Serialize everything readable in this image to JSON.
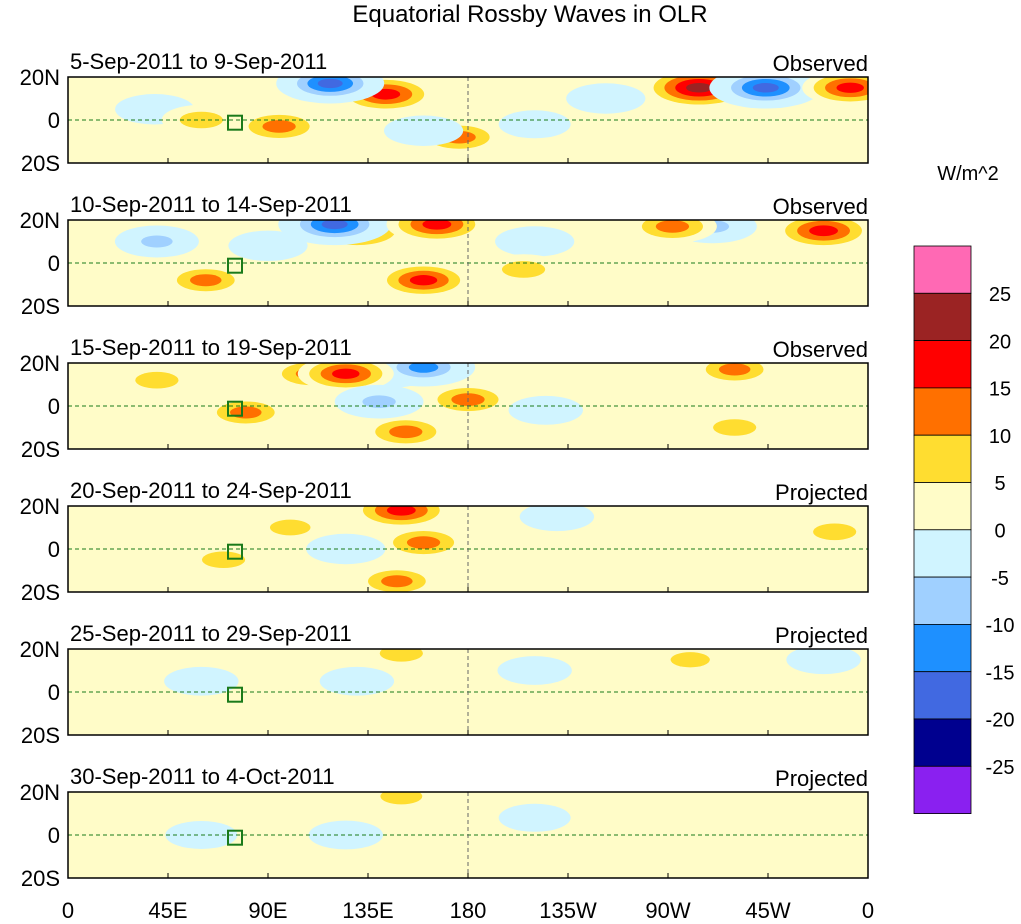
{
  "chart_data": {
    "type": "heatmap",
    "title": "Equatorial Rossby Waves in OLR",
    "units": "W/m^2",
    "xlim": [
      0,
      360
    ],
    "ylim": [
      -20,
      20
    ],
    "x_ticks": [
      {
        "v": 0,
        "l": "0"
      },
      {
        "v": 45,
        "l": "45E"
      },
      {
        "v": 90,
        "l": "90E"
      },
      {
        "v": 135,
        "l": "135E"
      },
      {
        "v": 180,
        "l": "180"
      },
      {
        "v": 225,
        "l": "135W"
      },
      {
        "v": 270,
        "l": "90W"
      },
      {
        "v": 315,
        "l": "45W"
      },
      {
        "v": 360,
        "l": "0"
      }
    ],
    "y_ticks": [
      {
        "v": 20,
        "l": "20N"
      },
      {
        "v": 0,
        "l": "0"
      },
      {
        "v": -20,
        "l": "20S"
      }
    ],
    "colorbar": {
      "labels": [
        "25",
        "20",
        "15",
        "10",
        "5",
        "0",
        "-5",
        "-10",
        "-15",
        "-20",
        "-25"
      ],
      "colors": [
        "#ff69b4",
        "#9b2323",
        "#ff0000",
        "#ff7000",
        "#ffdd30",
        "#fffcc8",
        "#d0f4ff",
        "#a0d0ff",
        "#1e90ff",
        "#4169e1",
        "#00008f",
        "#8a20f0"
      ]
    },
    "panels": [
      {
        "dates": "5-Sep-2011 to 9-Sep-2011",
        "kind": "Observed",
        "anomalies": [
          [
            143,
            12,
            17
          ],
          [
            284,
            15,
            22
          ],
          [
            314,
            15,
            -22
          ],
          [
            118,
            17,
            -20
          ],
          [
            39,
            5,
            -8
          ],
          [
            95,
            -3,
            12
          ],
          [
            176,
            -8,
            12
          ],
          [
            242,
            10,
            -8
          ],
          [
            352,
            15,
            15
          ],
          [
            60,
            0,
            8
          ],
          [
            210,
            -2,
            -5
          ],
          [
            160,
            -5,
            -8
          ]
        ]
      },
      {
        "dates": "10-Sep-2011 to 14-Sep-2011",
        "kind": "Observed",
        "anomalies": [
          [
            130,
            15,
            17
          ],
          [
            120,
            18,
            -22
          ],
          [
            166,
            18,
            17
          ],
          [
            62,
            -8,
            10
          ],
          [
            160,
            -8,
            15
          ],
          [
            290,
            17,
            -12
          ],
          [
            272,
            17,
            12
          ],
          [
            340,
            15,
            17
          ],
          [
            40,
            10,
            -10
          ],
          [
            210,
            10,
            -8
          ],
          [
            90,
            8,
            -8
          ],
          [
            205,
            -3,
            8
          ]
        ]
      },
      {
        "dates": "15-Sep-2011 to 19-Sep-2011",
        "kind": "Observed",
        "anomalies": [
          [
            143,
            18,
            -22
          ],
          [
            160,
            18,
            -18
          ],
          [
            110,
            15,
            12
          ],
          [
            125,
            15,
            15
          ],
          [
            152,
            -12,
            12
          ],
          [
            180,
            3,
            12
          ],
          [
            140,
            2,
            -12
          ],
          [
            300,
            17,
            10
          ],
          [
            40,
            12,
            8
          ],
          [
            80,
            -3,
            10
          ],
          [
            300,
            -10,
            8
          ],
          [
            215,
            -2,
            -6
          ]
        ]
      },
      {
        "dates": "20-Sep-2011 to 24-Sep-2011",
        "kind": "Projected",
        "anomalies": [
          [
            150,
            18,
            17
          ],
          [
            160,
            3,
            12
          ],
          [
            148,
            -15,
            10
          ],
          [
            125,
            0,
            -8
          ],
          [
            220,
            15,
            -6
          ],
          [
            70,
            -5,
            8
          ],
          [
            345,
            8,
            8
          ],
          [
            100,
            10,
            6
          ]
        ]
      },
      {
        "dates": "25-Sep-2011 to 29-Sep-2011",
        "kind": "Projected",
        "anomalies": [
          [
            150,
            18,
            8
          ],
          [
            130,
            5,
            -6
          ],
          [
            210,
            10,
            -6
          ],
          [
            60,
            5,
            -6
          ],
          [
            280,
            15,
            5
          ],
          [
            340,
            15,
            -6
          ]
        ]
      },
      {
        "dates": "30-Sep-2011 to 4-Oct-2011",
        "kind": "Projected",
        "anomalies": [
          [
            150,
            18,
            7
          ],
          [
            125,
            0,
            -6
          ],
          [
            60,
            0,
            -5
          ],
          [
            210,
            8,
            -5
          ],
          [
            300,
            10,
            4
          ]
        ]
      }
    ]
  }
}
